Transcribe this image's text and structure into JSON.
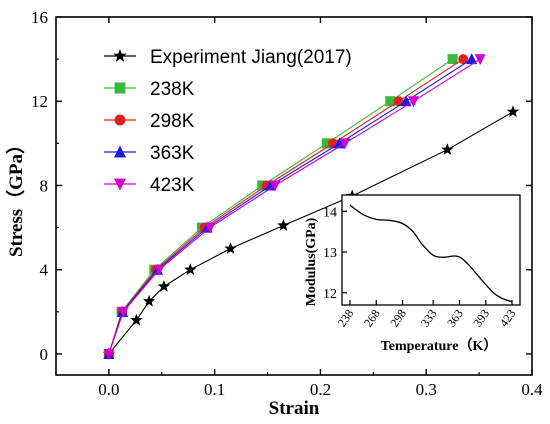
{
  "chart_data": [
    {
      "type": "line",
      "xlabel": "Strain",
      "ylabel": "Stress（GPa）",
      "xlim": [
        -0.05,
        0.4
      ],
      "ylim": [
        -1,
        16
      ],
      "xticks": [
        "0.0",
        "0.1",
        "0.2",
        "0.3",
        "0.4"
      ],
      "yticks": [
        "0",
        "4",
        "8",
        "12",
        "16"
      ],
      "legend_position": "top-left",
      "series": [
        {
          "name": "Experiment Jiang(2017)",
          "color": "#000000",
          "marker": "star",
          "x": [
            0,
            0.026,
            0.038,
            0.052,
            0.077,
            0.115,
            0.165,
            0.23,
            0.32,
            0.382
          ],
          "y": [
            0,
            1.6,
            2.5,
            3.2,
            4.0,
            5.0,
            6.1,
            7.5,
            9.7,
            11.5
          ]
        },
        {
          "name": "238K",
          "color": "#3ab83a",
          "marker": "square",
          "x": [
            0,
            0.012,
            0.043,
            0.088,
            0.145,
            0.206,
            0.266,
            0.325
          ],
          "y": [
            0,
            2,
            4,
            6,
            8,
            10,
            12,
            14
          ]
        },
        {
          "name": "298K",
          "color": "#e02020",
          "marker": "circle",
          "x": [
            0,
            0.0125,
            0.0445,
            0.0905,
            0.149,
            0.212,
            0.274,
            0.335
          ],
          "y": [
            0,
            2,
            4,
            6,
            8,
            10,
            12,
            14
          ]
        },
        {
          "name": "363K",
          "color": "#1a1ae0",
          "marker": "triangle-up",
          "x": [
            0,
            0.013,
            0.046,
            0.093,
            0.153,
            0.218,
            0.281,
            0.343
          ],
          "y": [
            0,
            2,
            4,
            6,
            8,
            10,
            12,
            14
          ]
        },
        {
          "name": "423K",
          "color": "#d000d0",
          "marker": "triangle-down",
          "x": [
            0,
            0.0135,
            0.0475,
            0.0955,
            0.157,
            0.223,
            0.288,
            0.351
          ],
          "y": [
            0,
            2,
            4,
            6,
            8,
            10,
            12,
            14
          ]
        }
      ]
    },
    {
      "type": "line",
      "position": "inset-bottom-right",
      "xlabel": "Temperature（K）",
      "ylabel": "Modulus(GPa)",
      "ylim": [
        11.7,
        14.4
      ],
      "xticks": [
        "238",
        "268",
        "298",
        "333",
        "363",
        "393",
        "423"
      ],
      "yticks": [
        "12",
        "13",
        "14"
      ],
      "series": [
        {
          "color": "#000000",
          "x": [
            238,
            253,
            268,
            283,
            298,
            310,
            320,
            333,
            345,
            355,
            363,
            373,
            383,
            393,
            403,
            413,
            423
          ],
          "y": [
            14.15,
            13.92,
            13.8,
            13.78,
            13.7,
            13.5,
            13.2,
            12.92,
            12.87,
            12.9,
            12.88,
            12.7,
            12.45,
            12.2,
            11.98,
            11.85,
            11.78
          ]
        }
      ]
    }
  ]
}
